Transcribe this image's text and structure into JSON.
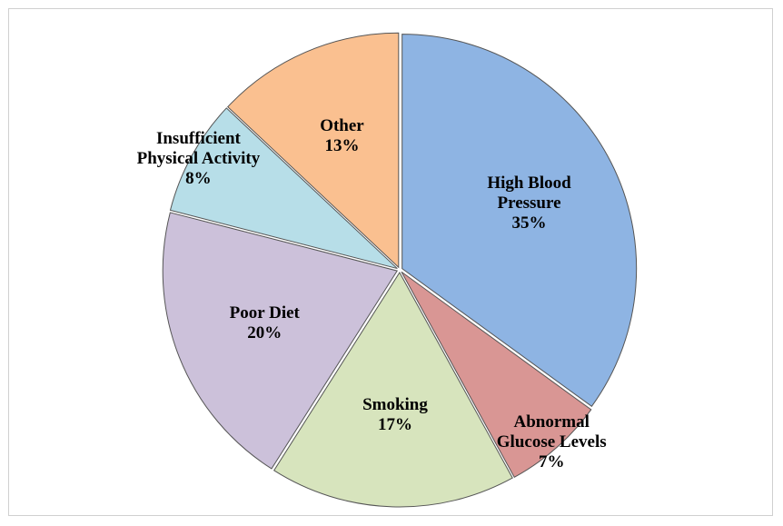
{
  "chart_data": {
    "type": "pie",
    "categories": [
      "High Blood Pressure",
      "Abnormal Glucose Levels",
      "Smoking",
      "Poor Diet",
      "Insufficient Physical Activity",
      "Other"
    ],
    "values": [
      35,
      7,
      17,
      20,
      8,
      13
    ],
    "value_labels": [
      "35%",
      "7%",
      "17%",
      "20%",
      "8%",
      "13%"
    ],
    "colors": [
      "#8eb4e3",
      "#d99694",
      "#d7e4bd",
      "#ccc1da",
      "#b7dee8",
      "#fac090"
    ]
  }
}
